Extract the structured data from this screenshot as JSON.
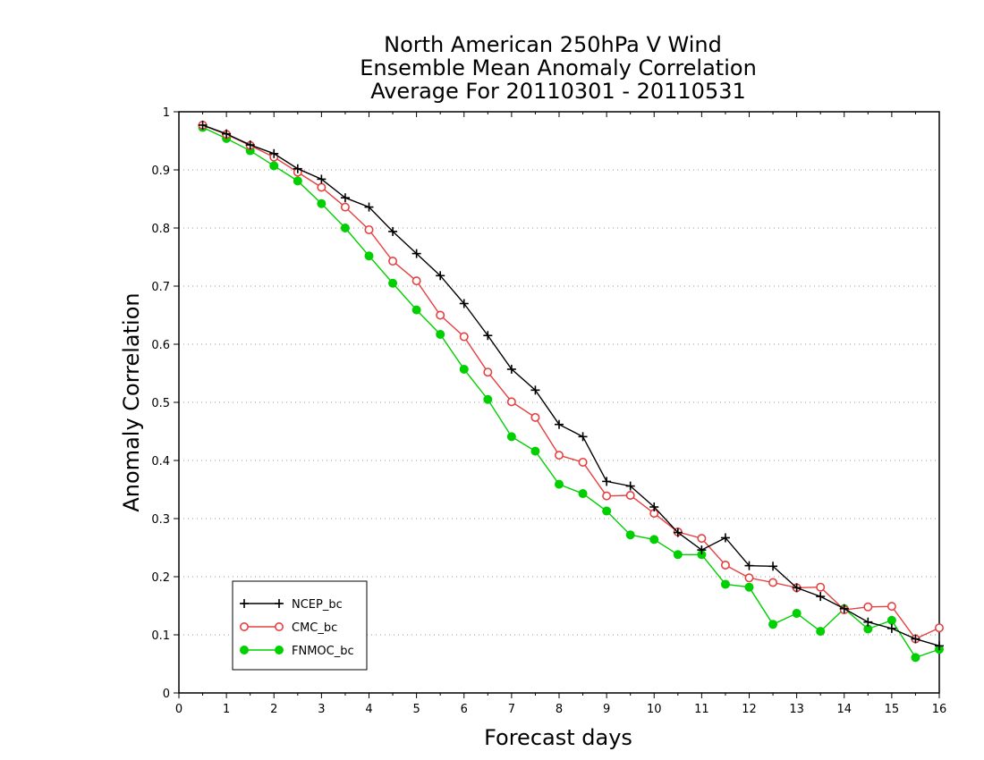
{
  "chart_data": {
    "type": "line",
    "title_lines": [
      "North American 250hPa V Wind",
      "Ensemble Mean Anomaly Correlation",
      "Average For 20110301 - 20110531"
    ],
    "xlabel": "Forecast days",
    "ylabel": "Anomaly Correlation",
    "xlim": [
      0,
      16
    ],
    "ylim": [
      0,
      1
    ],
    "xticks": [
      0,
      1,
      2,
      3,
      4,
      5,
      6,
      7,
      8,
      9,
      10,
      11,
      12,
      13,
      14,
      15,
      16
    ],
    "xtick_labels": [
      "0",
      "1",
      "2",
      "3",
      "4",
      "5",
      "6",
      "7",
      "8",
      "9",
      "10",
      "11",
      "12",
      "13",
      "14",
      "15",
      "16"
    ],
    "yticks": [
      0,
      0.1,
      0.2,
      0.3,
      0.4,
      0.5,
      0.6,
      0.7,
      0.8,
      0.9,
      1
    ],
    "ytick_labels": [
      "0",
      "0.1",
      "0.2",
      "0.3",
      "0.4",
      "0.5",
      "0.6",
      "0.7",
      "0.8",
      "0.9",
      "1"
    ],
    "grid": "horizontal dotted",
    "legend_position": "bottom-left",
    "x": [
      0.5,
      1,
      1.5,
      2,
      2.5,
      3,
      3.5,
      4,
      4.5,
      5,
      5.5,
      6,
      6.5,
      7,
      7.5,
      8,
      8.5,
      9,
      9.5,
      10,
      10.5,
      11,
      11.5,
      12,
      12.5,
      13,
      13.5,
      14,
      14.5,
      15,
      15.5,
      16
    ],
    "series": [
      {
        "name": "NCEP_bc",
        "color": "#000000",
        "marker": "plus",
        "values": [
          0.977,
          0.962,
          0.943,
          0.928,
          0.902,
          0.884,
          0.852,
          0.836,
          0.794,
          0.756,
          0.718,
          0.67,
          0.615,
          0.557,
          0.521,
          0.462,
          0.441,
          0.364,
          0.356,
          0.32,
          0.276,
          0.246,
          0.267,
          0.219,
          0.218,
          0.181,
          0.166,
          0.145,
          0.122,
          0.111,
          0.093,
          0.081
        ]
      },
      {
        "name": "CMC_bc",
        "color": "#e64040",
        "marker": "open-circle",
        "values": [
          0.977,
          0.961,
          0.942,
          0.922,
          0.896,
          0.87,
          0.836,
          0.797,
          0.743,
          0.709,
          0.65,
          0.613,
          0.552,
          0.501,
          0.474,
          0.409,
          0.397,
          0.339,
          0.34,
          0.309,
          0.277,
          0.266,
          0.22,
          0.198,
          0.19,
          0.181,
          0.182,
          0.143,
          0.148,
          0.149,
          0.093,
          0.112
        ]
      },
      {
        "name": "FNMOC_bc",
        "color": "#00d000",
        "marker": "filled-circle",
        "values": [
          0.973,
          0.954,
          0.933,
          0.907,
          0.881,
          0.842,
          0.8,
          0.752,
          0.705,
          0.659,
          0.617,
          0.557,
          0.505,
          0.441,
          0.416,
          0.359,
          0.343,
          0.313,
          0.272,
          0.264,
          0.238,
          0.238,
          0.187,
          0.182,
          0.118,
          0.137,
          0.106,
          0.145,
          0.11,
          0.125,
          0.061,
          0.075
        ]
      }
    ]
  }
}
